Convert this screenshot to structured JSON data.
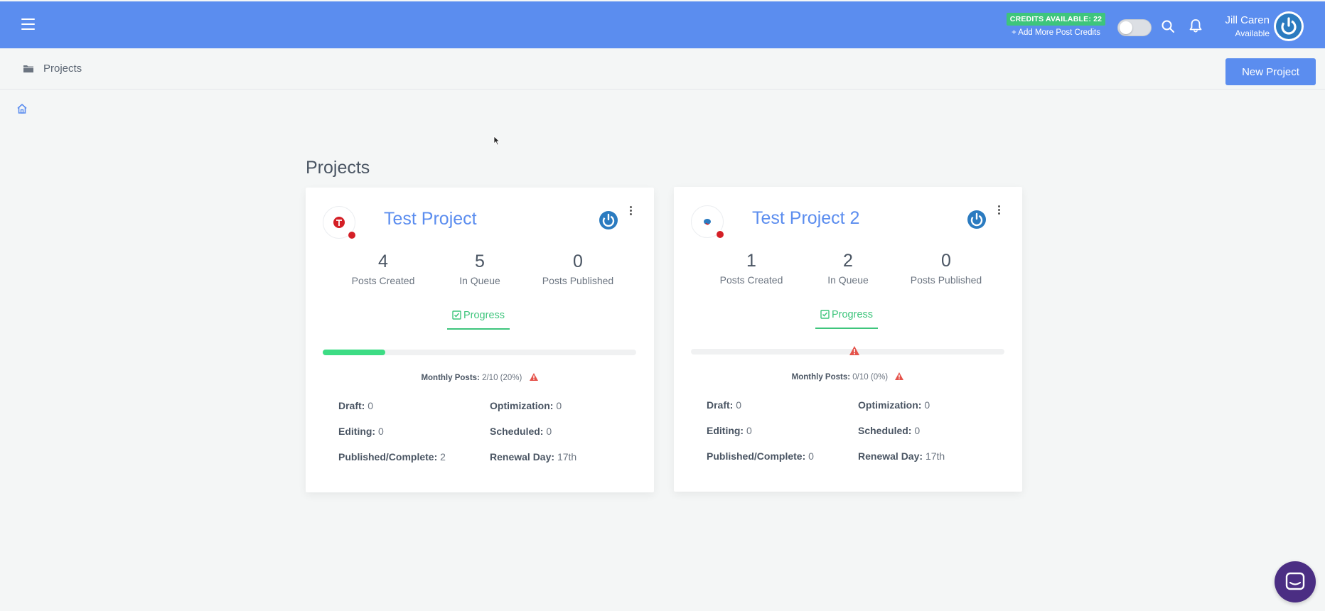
{
  "topbar": {
    "credits_badge": "CREDITS AVAILABLE: 22",
    "credits_link": "+ Add More Post Credits",
    "user_name": "Jill Caren",
    "user_status": "Available"
  },
  "subbar": {
    "title": "Projects",
    "new_project_label": "New Project"
  },
  "page_title": "Projects",
  "colors": {
    "primary": "#5b8def",
    "success": "#3ec57c",
    "warning": "#e5534b",
    "chat": "#4b2e83"
  },
  "projects": [
    {
      "title": "Test Project",
      "logo_icon": "tesla-logo-icon",
      "stats": [
        {
          "value": "4",
          "label": "Posts Created"
        },
        {
          "value": "5",
          "label": "In Queue"
        },
        {
          "value": "0",
          "label": "Posts Published"
        }
      ],
      "tab_label": "Progress",
      "progress_fraction": 0.2,
      "monthly_label": "Monthly Posts:",
      "monthly_value": "2/10 (20%)",
      "details": {
        "draft_label": "Draft:",
        "draft_value": "0",
        "optimization_label": "Optimization:",
        "optimization_value": "0",
        "editing_label": "Editing:",
        "editing_value": "0",
        "scheduled_label": "Scheduled:",
        "scheduled_value": "0",
        "published_label": "Published/Complete:",
        "published_value": "2",
        "renewal_label": "Renewal Day:",
        "renewal_value": "17th"
      }
    },
    {
      "title": "Test Project 2",
      "logo_icon": "brain-logo-icon",
      "stats": [
        {
          "value": "1",
          "label": "Posts Created"
        },
        {
          "value": "2",
          "label": "In Queue"
        },
        {
          "value": "0",
          "label": "Posts Published"
        }
      ],
      "tab_label": "Progress",
      "progress_fraction": 0.0,
      "monthly_label": "Monthly Posts:",
      "monthly_value": "0/10 (0%)",
      "details": {
        "draft_label": "Draft:",
        "draft_value": "0",
        "optimization_label": "Optimization:",
        "optimization_value": "0",
        "editing_label": "Editing:",
        "editing_value": "0",
        "scheduled_label": "Scheduled:",
        "scheduled_value": "0",
        "published_label": "Published/Complete:",
        "published_value": "0",
        "renewal_label": "Renewal Day:",
        "renewal_value": "17th"
      }
    }
  ]
}
